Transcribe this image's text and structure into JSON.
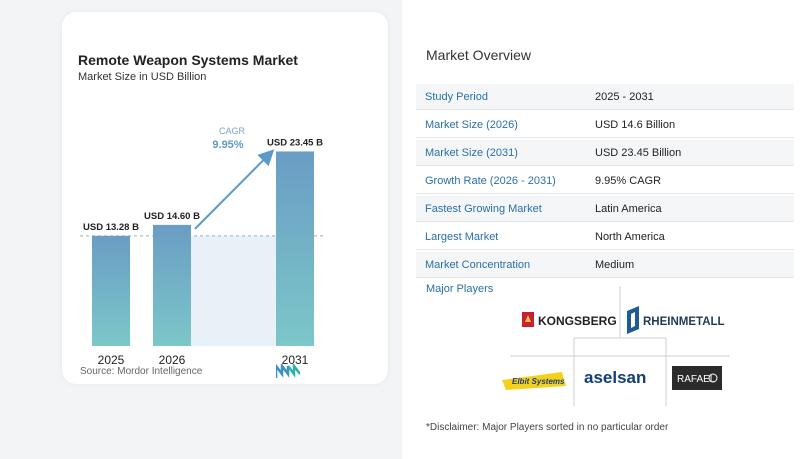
{
  "chart": {
    "title": "Remote Weapon Systems Market",
    "subtitle": "Market Size in USD Billion",
    "cagr_label": "CAGR",
    "cagr_value": "9.95%",
    "source": "Source:  Mordor Intelligence"
  },
  "chart_data": {
    "type": "bar",
    "title": "Remote Weapon Systems Market",
    "subtitle": "Market Size in USD Billion",
    "categories": [
      "2025",
      "2026",
      "2031"
    ],
    "values": [
      13.28,
      14.6,
      23.45
    ],
    "value_labels": [
      "USD 13.28 B",
      "USD 14.60 B",
      "USD 23.45 B"
    ],
    "unit": "USD Billion",
    "annotation": {
      "label": "CAGR",
      "value": "9.95%"
    },
    "ylim": [
      0,
      27
    ],
    "grid": false,
    "legend": "none"
  },
  "overview": {
    "title": "Market Overview",
    "rows": [
      {
        "label": "Study Period",
        "value": "2025 - 2031"
      },
      {
        "label": "Market Size (2026)",
        "value": "USD 14.6 Billion"
      },
      {
        "label": "Market Size (2031)",
        "value": "USD 23.45 Billion"
      },
      {
        "label": "Growth Rate (2026 - 2031)",
        "value": "9.95% CAGR"
      },
      {
        "label": "Fastest Growing Market",
        "value": "Latin America"
      },
      {
        "label": "Largest Market",
        "value": "North America"
      },
      {
        "label": "Market Concentration",
        "value": "Medium"
      }
    ],
    "players_title": "Major Players",
    "players": [
      "KONGSBERG",
      "RHEINMETALL",
      "Elbit Systems",
      "aselsan",
      "RAFAEL"
    ],
    "disclaimer": "*Disclaimer: Major Players sorted in no particular order"
  },
  "colors": {
    "bar_top": "#6a9dc4",
    "bar_bottom": "#7cc7c9",
    "accent": "#2a6fa6",
    "arrow": "#5b9ac9",
    "cagr": "#5b9ac9"
  }
}
